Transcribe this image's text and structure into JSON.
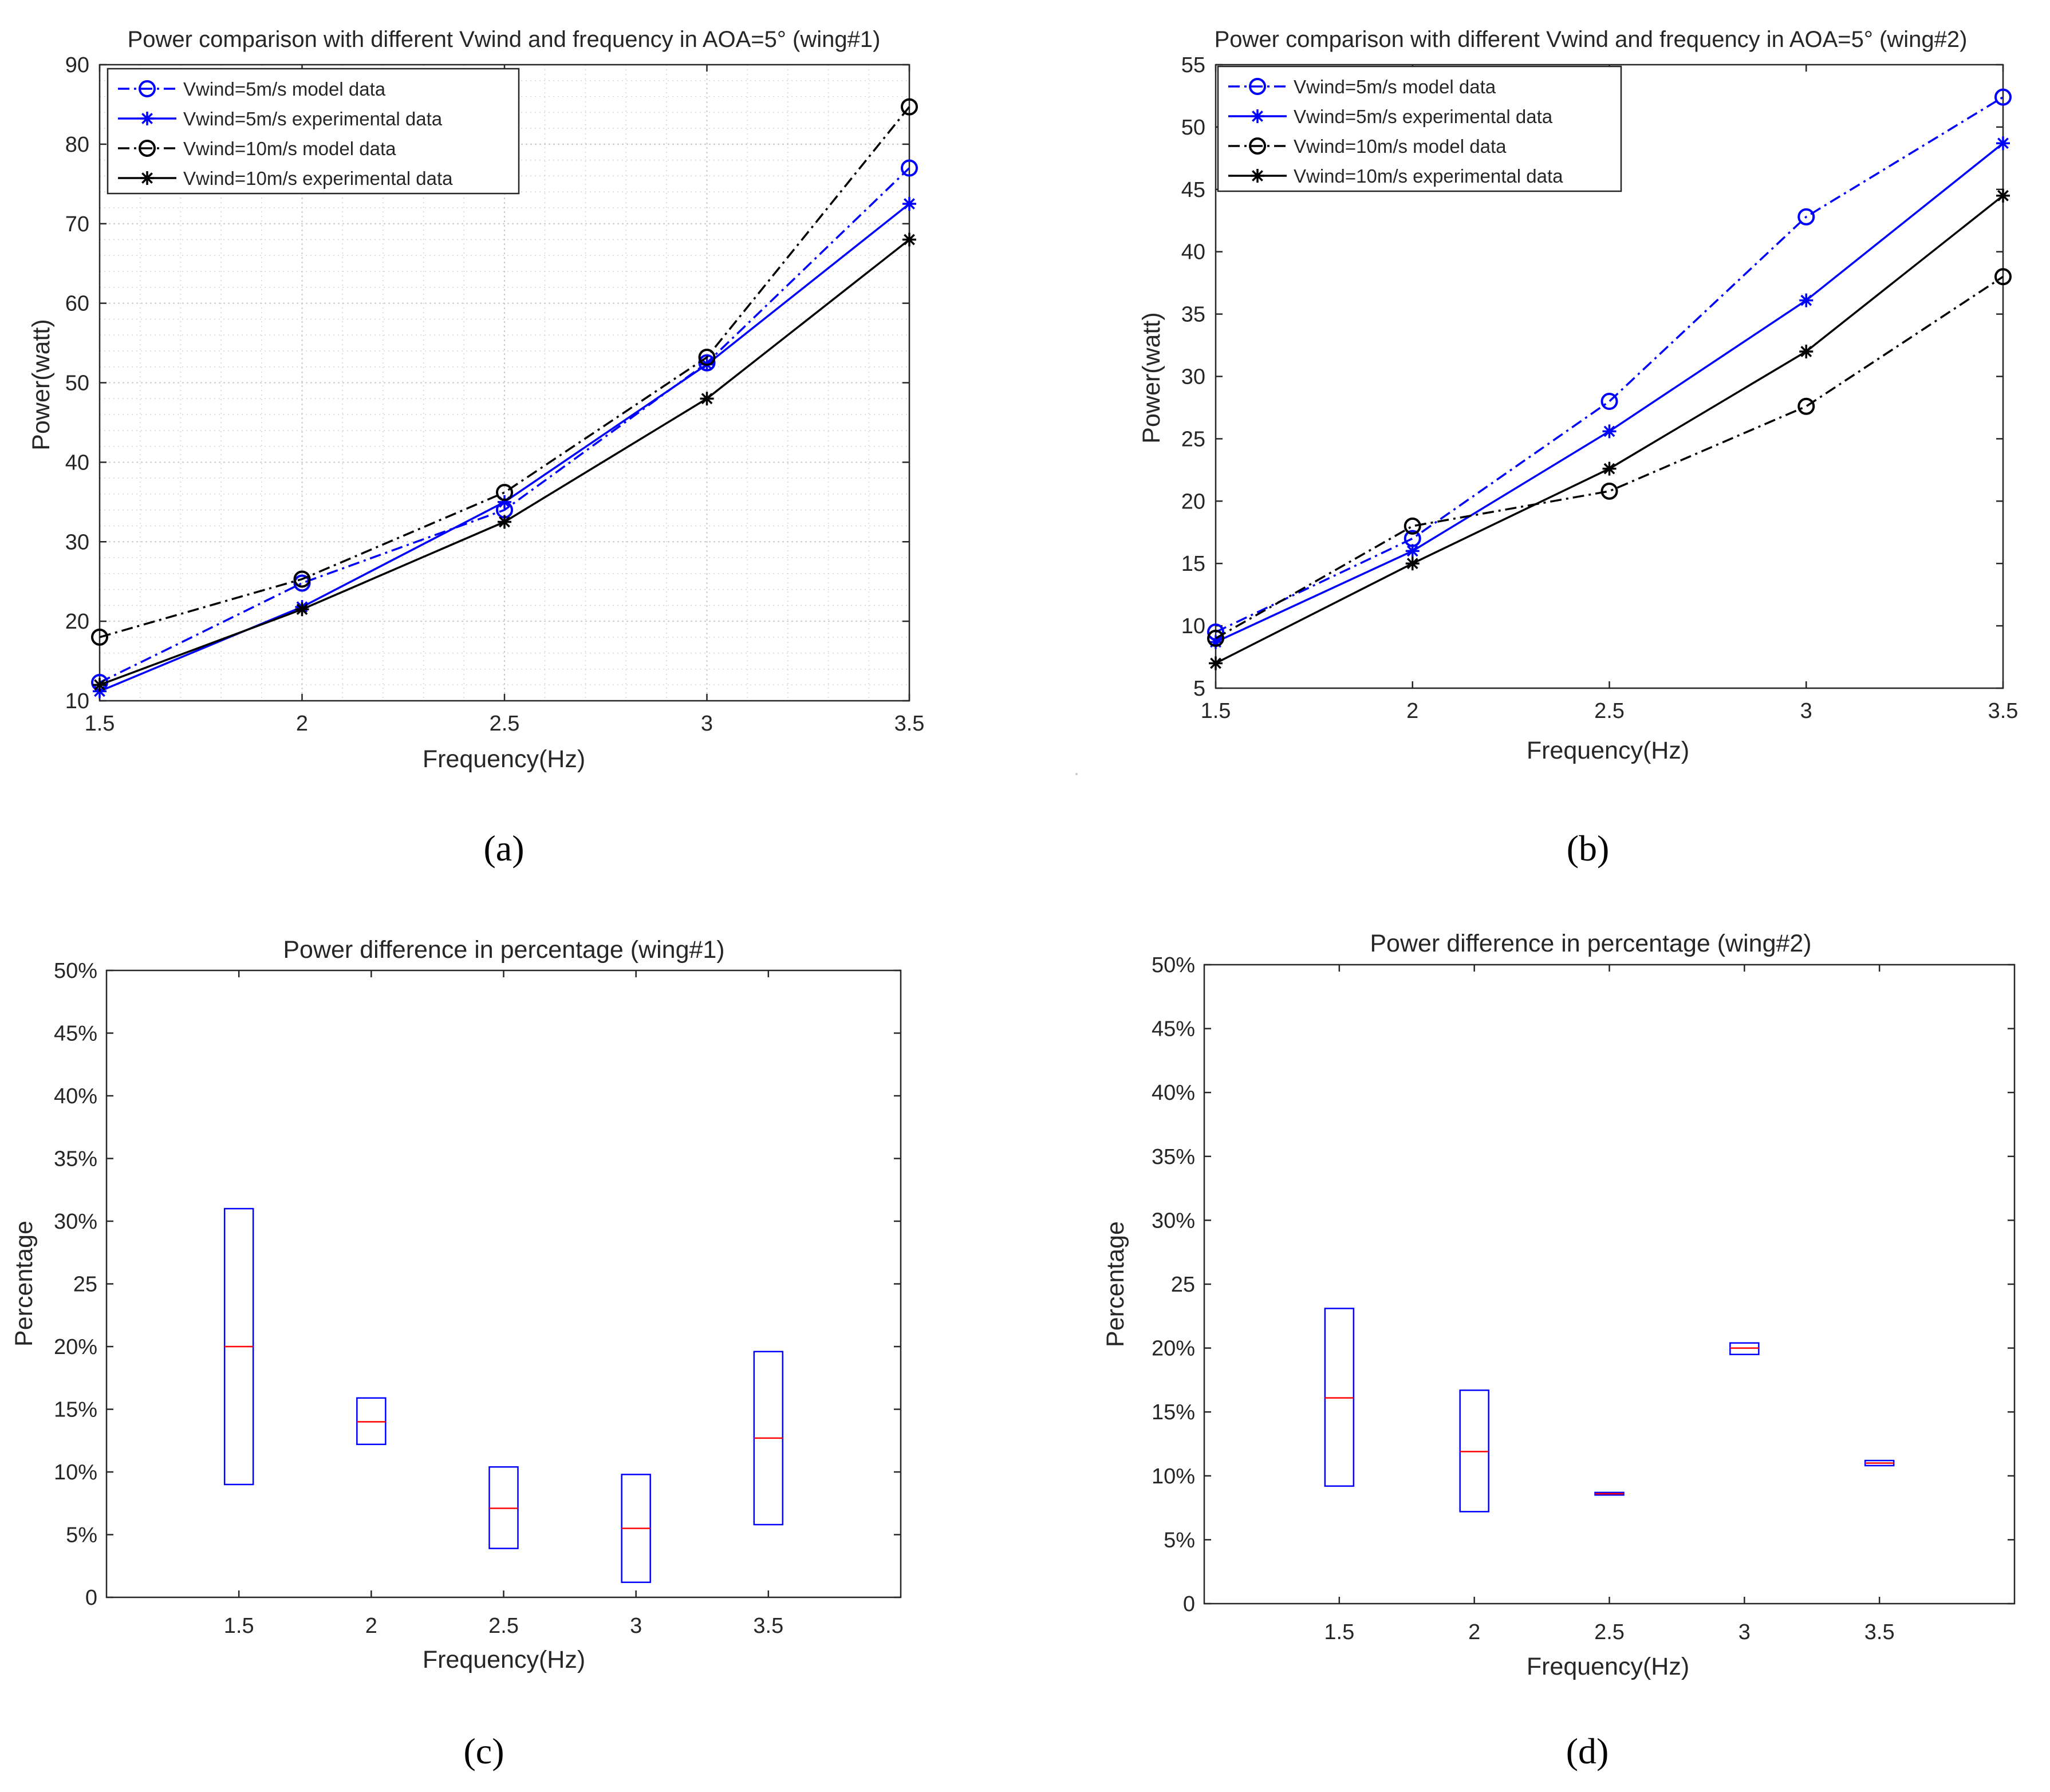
{
  "chart_data": [
    {
      "type": "line",
      "title": "Power comparison with different Vwind and frequency in AOA=5° (wing#1)",
      "caption": "(a)",
      "xlabel": "Frequency(Hz)",
      "ylabel": "Power(watt)",
      "x": [
        1.5,
        2,
        2.5,
        3,
        3.5
      ],
      "xticks": [
        "1.5",
        "2",
        "2.5",
        "3",
        "3.5"
      ],
      "xlim": [
        1.5,
        3.5
      ],
      "ylim": [
        10,
        90
      ],
      "yticks": [
        "10",
        "20",
        "30",
        "40",
        "50",
        "60",
        "70",
        "80",
        "90"
      ],
      "grid": true,
      "legend": "top-left",
      "series": [
        {
          "name": "Vwind=5m/s model data",
          "values": [
            12.3,
            24.8,
            34.0,
            52.5,
            77.0
          ],
          "color": "#0000ff",
          "dash": "dashdot",
          "marker": "circle"
        },
        {
          "name": "Vwind=5m/s experimental data",
          "values": [
            11.2,
            21.8,
            35.0,
            52.3,
            72.5
          ],
          "color": "#0000ff",
          "dash": "solid",
          "marker": "star"
        },
        {
          "name": "Vwind=10m/s model data",
          "values": [
            18.0,
            25.3,
            36.2,
            53.2,
            84.7
          ],
          "color": "#000000",
          "dash": "dashdot",
          "marker": "circle"
        },
        {
          "name": "Vwind=10m/s experimental data",
          "values": [
            12.0,
            21.5,
            32.5,
            48.0,
            68.0
          ],
          "color": "#000000",
          "dash": "solid",
          "marker": "star"
        }
      ]
    },
    {
      "type": "line",
      "title": "Power comparison with different Vwind and frequency in AOA=5° (wing#2)",
      "caption": "(b)",
      "xlabel": "Frequency(Hz)",
      "ylabel": "Power(watt)",
      "x": [
        1.5,
        2,
        2.5,
        3,
        3.5
      ],
      "xticks": [
        "1.5",
        "2",
        "2.5",
        "3",
        "3.5"
      ],
      "xlim": [
        1.5,
        3.5
      ],
      "ylim": [
        5,
        55
      ],
      "yticks": [
        "5",
        "10",
        "15",
        "20",
        "25",
        "30",
        "35",
        "40",
        "45",
        "50",
        "55"
      ],
      "grid": false,
      "legend": "top-left",
      "series": [
        {
          "name": "Vwind=5m/s model data",
          "values": [
            9.5,
            17.0,
            28.0,
            42.8,
            52.4
          ],
          "color": "#0000ff",
          "dash": "dashdot",
          "marker": "circle"
        },
        {
          "name": "Vwind=5m/s experimental data",
          "values": [
            8.7,
            16.0,
            25.6,
            36.1,
            48.7
          ],
          "color": "#0000ff",
          "dash": "solid",
          "marker": "star"
        },
        {
          "name": "Vwind=10m/s model data",
          "values": [
            9.0,
            18.0,
            20.8,
            27.6,
            38.0
          ],
          "color": "#000000",
          "dash": "dashdot",
          "marker": "circle"
        },
        {
          "name": "Vwind=10m/s experimental data",
          "values": [
            7.0,
            15.0,
            22.6,
            32.0,
            44.5
          ],
          "color": "#000000",
          "dash": "solid",
          "marker": "star"
        }
      ]
    },
    {
      "type": "box",
      "title": "Power difference in percentage (wing#1)",
      "caption": "(c)",
      "xlabel": "Frequency(Hz)",
      "ylabel": "Percentage",
      "categories": [
        "1.5",
        "2",
        "2.5",
        "3",
        "3.5"
      ],
      "ylim": [
        0,
        50
      ],
      "yticks": [
        "0",
        "5%",
        "10%",
        "15%",
        "20%",
        "25",
        "30%",
        "35%",
        "40%",
        "45%",
        "50%"
      ],
      "boxes": [
        {
          "low": 9.0,
          "high": 31.0,
          "median": 20.0
        },
        {
          "low": 12.2,
          "high": 15.9,
          "median": 14.0
        },
        {
          "low": 3.9,
          "high": 10.4,
          "median": 7.1
        },
        {
          "low": 1.2,
          "high": 9.8,
          "median": 5.5
        },
        {
          "low": 5.8,
          "high": 19.6,
          "median": 12.7
        }
      ],
      "box_color": "#0000ff",
      "median_color": "#ff0000"
    },
    {
      "type": "box",
      "title": "Power difference in percentage (wing#2)",
      "caption": "(d)",
      "xlabel": "Frequency(Hz)",
      "ylabel": "Percentage",
      "categories": [
        "1.5",
        "2",
        "2.5",
        "3",
        "3.5"
      ],
      "ylim": [
        0,
        50
      ],
      "yticks": [
        "0",
        "5%",
        "10%",
        "15%",
        "20%",
        "25",
        "30%",
        "35%",
        "40%",
        "45%",
        "50%"
      ],
      "boxes": [
        {
          "low": 9.2,
          "high": 23.1,
          "median": 16.1
        },
        {
          "low": 7.2,
          "high": 16.7,
          "median": 11.9
        },
        {
          "low": 8.5,
          "high": 8.7,
          "median": 8.6
        },
        {
          "low": 19.5,
          "high": 20.4,
          "median": 20.0
        },
        {
          "low": 10.8,
          "high": 11.2,
          "median": 11.0
        }
      ],
      "box_color": "#0000ff",
      "median_color": "#ff0000"
    }
  ]
}
